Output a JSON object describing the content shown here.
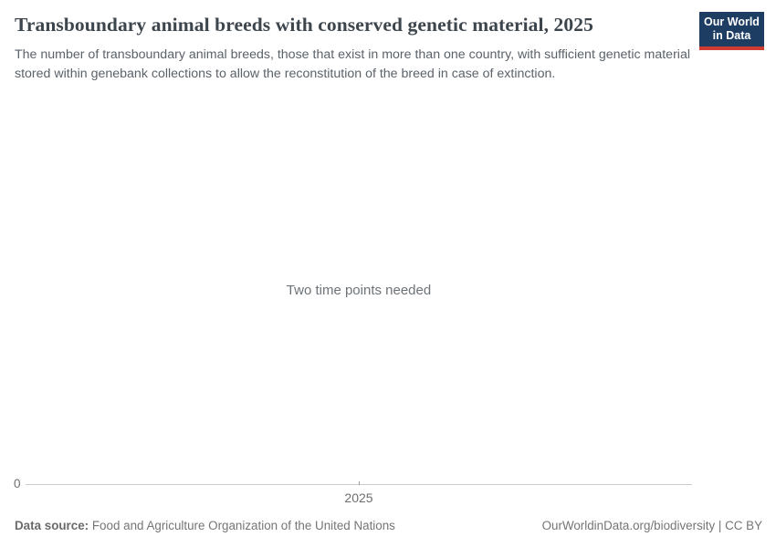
{
  "header": {
    "title": "Transboundary animal breeds with conserved genetic material, 2025",
    "subtitle": "The number of transboundary animal breeds, those that exist in more than one country, with sufficient genetic material stored within genebank collections to allow the reconstitution of the breed in case of extinction.",
    "logo": {
      "line1": "Our World",
      "line2": "in Data",
      "bg_color": "#1d3d63",
      "bar_color": "#d13c32",
      "text_color": "#ffffff"
    }
  },
  "chart_data": {
    "type": "line",
    "title": "Transboundary animal breeds with conserved genetic material, 2025",
    "empty_state_message": "Two time points needed",
    "series": [],
    "x_axis": {
      "tick_labels": [
        "2025"
      ],
      "tick_position_fraction": 0.5
    },
    "y_axis": {
      "tick_labels": [
        "0"
      ],
      "min": 0
    },
    "grid": false,
    "legend": false
  },
  "footer": {
    "source_label": "Data source:",
    "source_value": "Food and Agriculture Organization of the United Nations",
    "link_text": "OurWorldinData.org/biodiversity | CC BY"
  },
  "colors": {
    "title_text": "#3d454d",
    "subtitle_text": "#5b6269",
    "message_text": "#6d7378",
    "axis_text": "#6e6e6e",
    "axis_line": "#cccccc",
    "footer_text": "#757575",
    "brand_navy": "#1d3d63",
    "brand_red": "#d13c32"
  }
}
